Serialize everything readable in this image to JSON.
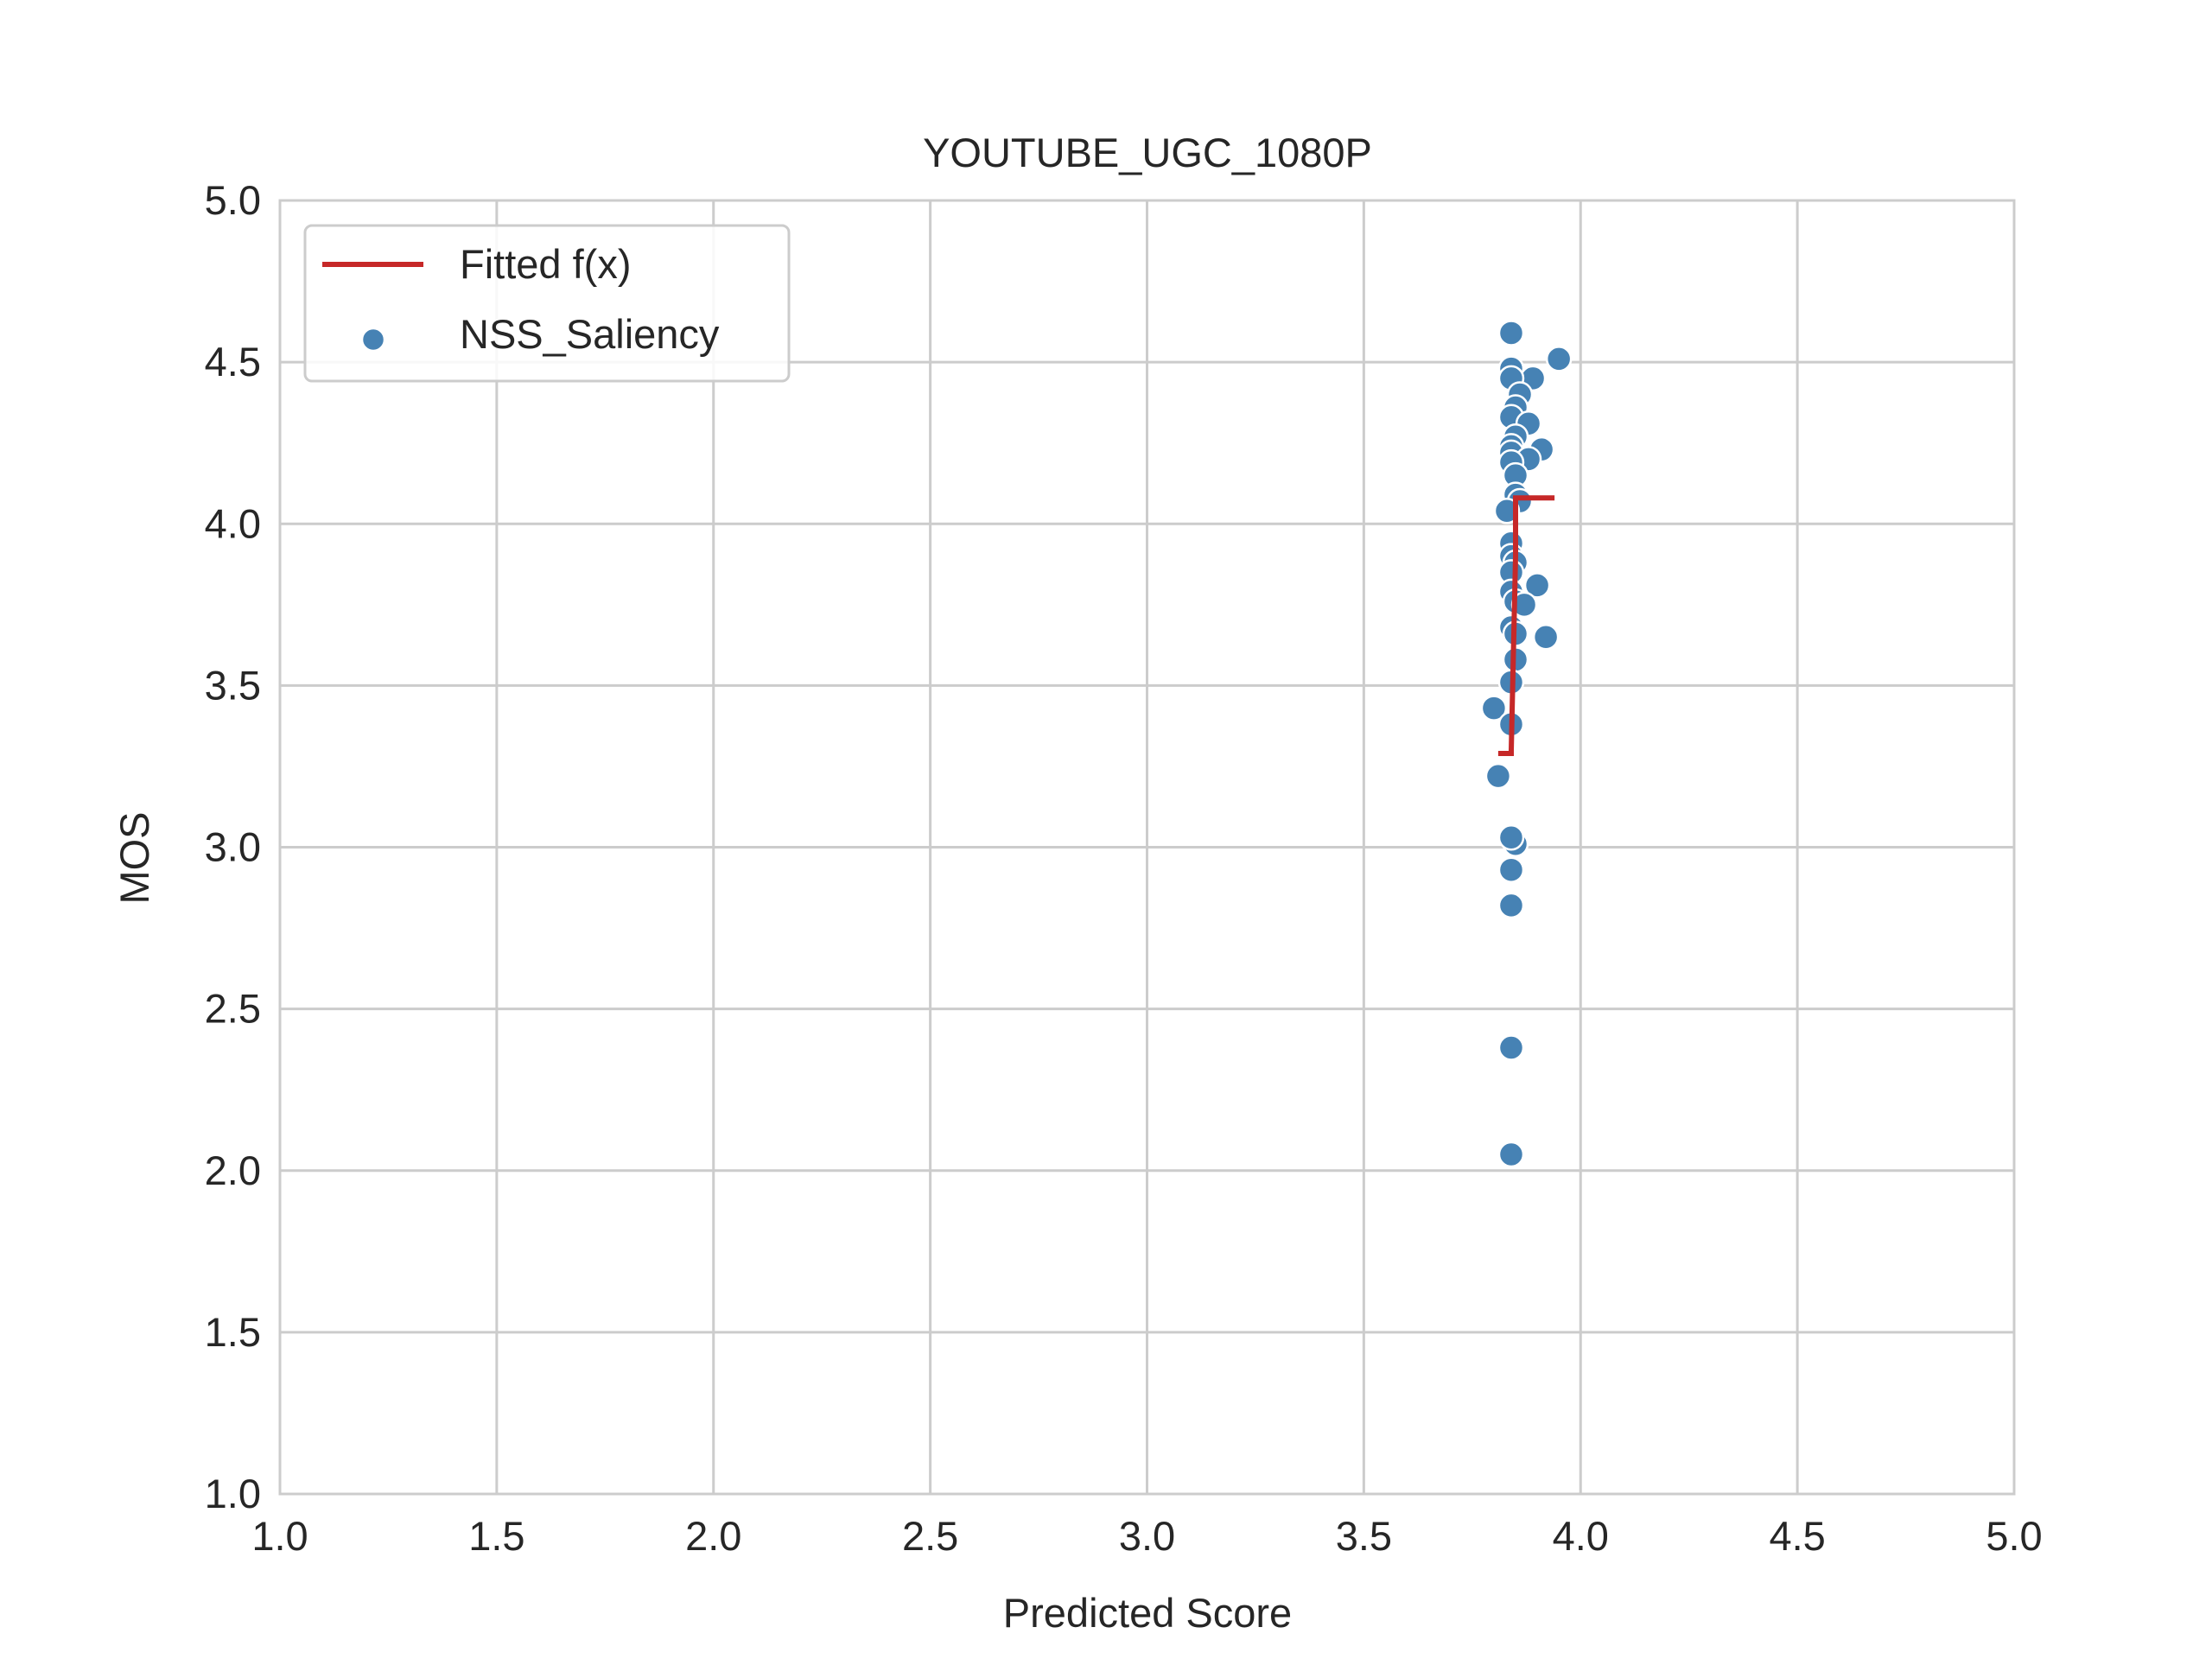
{
  "chart_data": {
    "type": "scatter",
    "title": "YOUTUBE_UGC_1080P",
    "xlabel": "Predicted Score",
    "ylabel": "MOS",
    "xlim": [
      1.0,
      5.0
    ],
    "ylim": [
      1.0,
      5.0
    ],
    "xticks": [
      "1.0",
      "1.5",
      "2.0",
      "2.5",
      "3.0",
      "3.5",
      "4.0",
      "4.5",
      "5.0"
    ],
    "yticks": [
      "1.0",
      "1.5",
      "2.0",
      "2.5",
      "3.0",
      "3.5",
      "4.0",
      "4.5",
      "5.0"
    ],
    "grid": true,
    "legend_position": "top-left",
    "series": [
      {
        "name": "NSS_Saliency",
        "kind": "scatter",
        "color": "#4682b4",
        "points": [
          [
            3.84,
            4.59
          ],
          [
            3.95,
            4.51
          ],
          [
            3.84,
            4.48
          ],
          [
            3.89,
            4.45
          ],
          [
            3.84,
            4.45
          ],
          [
            3.86,
            4.4
          ],
          [
            3.85,
            4.36
          ],
          [
            3.84,
            4.33
          ],
          [
            3.88,
            4.31
          ],
          [
            3.85,
            4.27
          ],
          [
            3.84,
            4.24
          ],
          [
            3.91,
            4.23
          ],
          [
            3.84,
            4.22
          ],
          [
            3.88,
            4.2
          ],
          [
            3.84,
            4.19
          ],
          [
            3.85,
            4.15
          ],
          [
            3.85,
            4.09
          ],
          [
            3.86,
            4.07
          ],
          [
            3.83,
            4.04
          ],
          [
            3.84,
            3.94
          ],
          [
            3.84,
            3.9
          ],
          [
            3.85,
            3.88
          ],
          [
            3.84,
            3.85
          ],
          [
            3.9,
            3.81
          ],
          [
            3.84,
            3.79
          ],
          [
            3.85,
            3.76
          ],
          [
            3.87,
            3.75
          ],
          [
            3.84,
            3.68
          ],
          [
            3.85,
            3.66
          ],
          [
            3.92,
            3.65
          ],
          [
            3.85,
            3.58
          ],
          [
            3.84,
            3.51
          ],
          [
            3.8,
            3.43
          ],
          [
            3.84,
            3.38
          ],
          [
            3.81,
            3.22
          ],
          [
            3.85,
            3.01
          ],
          [
            3.84,
            3.03
          ],
          [
            3.84,
            2.93
          ],
          [
            3.84,
            2.82
          ],
          [
            3.84,
            2.38
          ],
          [
            3.84,
            2.05
          ]
        ]
      },
      {
        "name": "Fitted f(x)",
        "kind": "line",
        "color": "#c62828",
        "points": [
          [
            3.81,
            3.29
          ],
          [
            3.84,
            3.29
          ],
          [
            3.84,
            3.3
          ],
          [
            3.85,
            3.9
          ],
          [
            3.85,
            4.08
          ],
          [
            3.87,
            4.08
          ],
          [
            3.94,
            4.08
          ]
        ]
      }
    ]
  }
}
